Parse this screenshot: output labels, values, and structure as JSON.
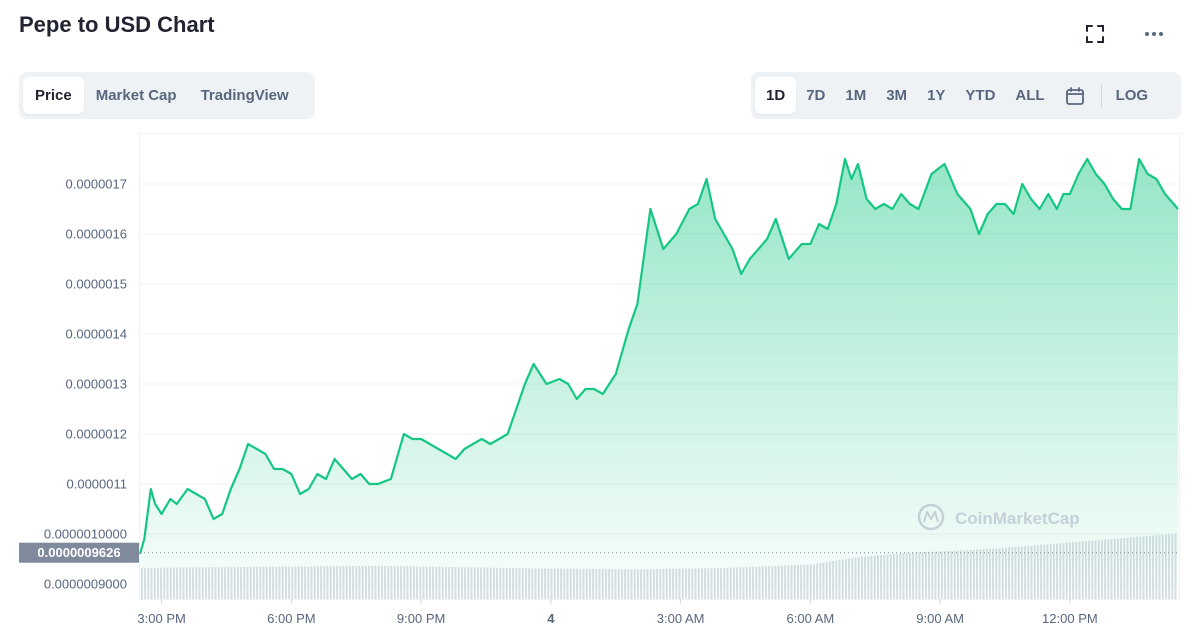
{
  "header": {
    "title": "Pepe to USD Chart"
  },
  "icons": {
    "expand": "fullscreen-icon",
    "more": "more-icon",
    "calendar": "calendar-icon"
  },
  "chart_tabs": [
    {
      "label": "Price",
      "active": true
    },
    {
      "label": "Market Cap",
      "active": false
    },
    {
      "label": "TradingView",
      "active": false
    }
  ],
  "ranges": [
    {
      "label": "1D",
      "active": true
    },
    {
      "label": "7D",
      "active": false
    },
    {
      "label": "1M",
      "active": false
    },
    {
      "label": "3M",
      "active": false
    },
    {
      "label": "1Y",
      "active": false
    },
    {
      "label": "YTD",
      "active": false
    },
    {
      "label": "ALL",
      "active": false
    }
  ],
  "log_label": "LOG",
  "watermark": "CoinMarketCap",
  "colors": {
    "line": "#16c784",
    "accent_label_bg": "#808a9d",
    "volume": "#d9dde4"
  },
  "chart_data": {
    "type": "area",
    "title": "",
    "xlabel": "",
    "ylabel": "",
    "current_price_label": "0.0000009626",
    "current_price": 9.626e-07,
    "y_ticks": [
      "0.0000009000",
      "0.0000010000",
      "0.0000011",
      "0.0000012",
      "0.0000013",
      "0.0000014",
      "0.0000015",
      "0.0000016",
      "0.0000017"
    ],
    "y_tick_values": [
      9e-07,
      1e-06,
      1.1e-06,
      1.2e-06,
      1.3e-06,
      1.4e-06,
      1.5e-06,
      1.6e-06,
      1.7e-06
    ],
    "ylim": [
      8.7e-07,
      1.8e-06
    ],
    "x_ticks": [
      "3:00 PM",
      "6:00 PM",
      "9:00 PM",
      "4",
      "3:00 AM",
      "6:00 AM",
      "9:00 AM",
      "12:00 PM"
    ],
    "x_tick_hours": [
      3,
      6,
      9,
      12,
      15,
      18,
      21,
      24
    ],
    "xlim_hours": [
      2.5,
      26.5
    ],
    "grid": true,
    "legend": "none",
    "series": [
      {
        "hours": [
          2.5,
          2.6,
          2.75,
          2.85,
          3.0,
          3.2,
          3.35,
          3.6,
          3.8,
          4.0,
          4.2,
          4.4,
          4.6,
          4.8,
          5.0,
          5.2,
          5.4,
          5.6,
          5.8,
          6.0,
          6.2,
          6.4,
          6.6,
          6.8,
          7.0,
          7.2,
          7.4,
          7.6,
          7.8,
          8.0,
          8.3,
          8.6,
          8.8,
          9.0,
          9.2,
          9.4,
          9.6,
          9.8,
          10.0,
          10.2,
          10.4,
          10.6,
          10.8,
          11.0,
          11.2,
          11.4,
          11.6,
          11.9,
          12.2,
          12.4,
          12.6,
          12.8,
          13.0,
          13.2,
          13.5,
          13.8,
          14.0,
          14.3,
          14.6,
          14.9,
          15.2,
          15.4,
          15.6,
          15.8,
          16.0,
          16.2,
          16.4,
          16.6,
          16.8,
          17.0,
          17.2,
          17.5,
          17.8,
          18.0,
          18.2,
          18.4,
          18.6,
          18.8,
          18.95,
          19.1,
          19.3,
          19.5,
          19.7,
          19.9,
          20.1,
          20.3,
          20.5,
          20.8,
          21.1,
          21.4,
          21.7,
          21.9,
          22.1,
          22.3,
          22.5,
          22.7,
          22.9,
          23.1,
          23.3,
          23.5,
          23.7,
          23.85,
          24.0,
          24.2,
          24.4,
          24.6,
          24.8,
          25.0,
          25.2,
          25.4,
          25.6,
          25.8,
          26.0,
          26.2,
          26.4,
          26.5
        ],
        "values": [
          9.6e-07,
          9.9e-07,
          1.09e-06,
          1.06e-06,
          1.04e-06,
          1.07e-06,
          1.06e-06,
          1.09e-06,
          1.08e-06,
          1.07e-06,
          1.03e-06,
          1.04e-06,
          1.09e-06,
          1.13e-06,
          1.18e-06,
          1.17e-06,
          1.16e-06,
          1.13e-06,
          1.13e-06,
          1.12e-06,
          1.08e-06,
          1.09e-06,
          1.12e-06,
          1.11e-06,
          1.15e-06,
          1.13e-06,
          1.11e-06,
          1.12e-06,
          1.1e-06,
          1.1e-06,
          1.11e-06,
          1.2e-06,
          1.19e-06,
          1.19e-06,
          1.18e-06,
          1.17e-06,
          1.16e-06,
          1.15e-06,
          1.17e-06,
          1.18e-06,
          1.19e-06,
          1.18e-06,
          1.19e-06,
          1.2e-06,
          1.25e-06,
          1.3e-06,
          1.34e-06,
          1.3e-06,
          1.31e-06,
          1.3e-06,
          1.27e-06,
          1.29e-06,
          1.29e-06,
          1.28e-06,
          1.32e-06,
          1.41e-06,
          1.46e-06,
          1.65e-06,
          1.57e-06,
          1.6e-06,
          1.65e-06,
          1.66e-06,
          1.71e-06,
          1.63e-06,
          1.6e-06,
          1.57e-06,
          1.52e-06,
          1.55e-06,
          1.57e-06,
          1.59e-06,
          1.63e-06,
          1.55e-06,
          1.58e-06,
          1.58e-06,
          1.62e-06,
          1.61e-06,
          1.66e-06,
          1.75e-06,
          1.71e-06,
          1.74e-06,
          1.67e-06,
          1.65e-06,
          1.66e-06,
          1.65e-06,
          1.68e-06,
          1.66e-06,
          1.65e-06,
          1.72e-06,
          1.74e-06,
          1.68e-06,
          1.65e-06,
          1.6e-06,
          1.64e-06,
          1.66e-06,
          1.66e-06,
          1.64e-06,
          1.7e-06,
          1.67e-06,
          1.65e-06,
          1.68e-06,
          1.65e-06,
          1.68e-06,
          1.68e-06,
          1.72e-06,
          1.75e-06,
          1.72e-06,
          1.7e-06,
          1.67e-06,
          1.65e-06,
          1.65e-06,
          1.75e-06,
          1.72e-06,
          1.71e-06,
          1.68e-06,
          1.66e-06,
          1.65e-06
        ]
      }
    ],
    "volume_series": {
      "hours": [
        2.5,
        4.0,
        6.0,
        8.0,
        10.0,
        12.0,
        14.0,
        16.0,
        18.0,
        19.0,
        20.0,
        22.0,
        24.0,
        26.5
      ],
      "relative_values": [
        0.45,
        0.46,
        0.47,
        0.48,
        0.46,
        0.44,
        0.43,
        0.45,
        0.5,
        0.6,
        0.66,
        0.72,
        0.82,
        0.95
      ]
    }
  }
}
